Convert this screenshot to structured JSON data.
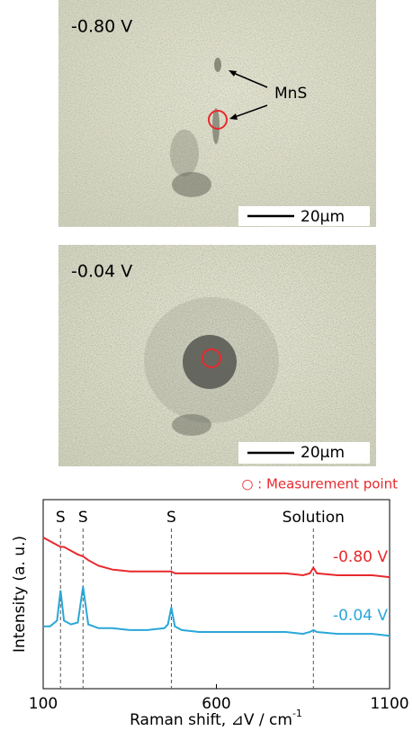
{
  "micrographs": [
    {
      "label": "-0.80 V",
      "scale_bar": "20μm",
      "arrow_label": "MnS"
    },
    {
      "label": "-0.04 V",
      "scale_bar": "20μm"
    }
  ],
  "measurement_note": "○ : Measurement point",
  "chart_data": {
    "type": "line",
    "y_label": "Intensity (a. u.)",
    "x_label": "Raman shift, ⊿V /  cm",
    "x_label_sup": "-1",
    "x": [
      100,
      120,
      140,
      150,
      160,
      180,
      200,
      215,
      230,
      260,
      300,
      350,
      400,
      450,
      460,
      470,
      480,
      500,
      550,
      600,
      650,
      700,
      750,
      800,
      850,
      870,
      880,
      890,
      950,
      1000,
      1050,
      1100
    ],
    "series": [
      {
        "name": "-0.80 V",
        "color": "#e8292d",
        "values": [
          80,
          78,
          76,
          75,
          75,
          73,
          71,
          70,
          68,
          65,
          63,
          62,
          62,
          62,
          62,
          62,
          61,
          61,
          61,
          61,
          61,
          61,
          61,
          61,
          60,
          61,
          64,
          61,
          60,
          60,
          60,
          59
        ]
      },
      {
        "name": "-0.04 V",
        "color": "#2aa7d8",
        "values": [
          33,
          33,
          36,
          52,
          36,
          34,
          35,
          54,
          34,
          32,
          32,
          31,
          31,
          32,
          34,
          43,
          33,
          31,
          30,
          30,
          30,
          30,
          30,
          30,
          29,
          30,
          31,
          30,
          29,
          29,
          29,
          28
        ]
      }
    ],
    "annotations": [
      {
        "text": "S",
        "x": 150
      },
      {
        "text": "S",
        "x": 215
      },
      {
        "text": "S",
        "x": 470
      },
      {
        "text": "Solution",
        "x": 880
      }
    ],
    "xlim": [
      100,
      1100
    ],
    "xticks": [
      100,
      600,
      1100
    ],
    "ylim": [
      0,
      100
    ]
  }
}
